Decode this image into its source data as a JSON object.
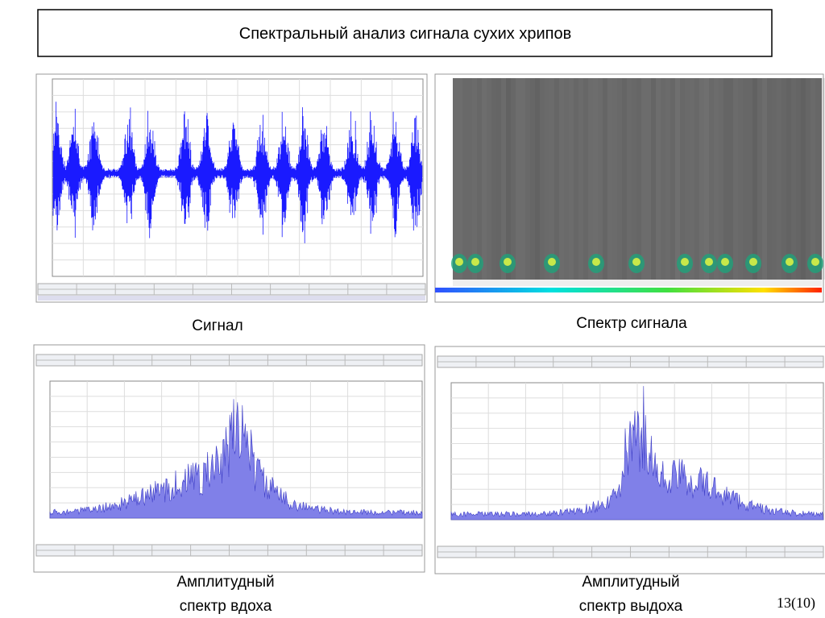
{
  "title": "Спектральный анализ сигнала сухих хрипов",
  "figures": [
    {
      "caption": [
        "Сигнал"
      ]
    },
    {
      "caption": [
        "Спектр сигнала"
      ]
    },
    {
      "caption": [
        "Амплитудный",
        "спектр вдоха"
      ]
    },
    {
      "caption": [
        "Амплитудный",
        "спектр выдоха"
      ]
    }
  ],
  "page_number": "13(10)"
}
